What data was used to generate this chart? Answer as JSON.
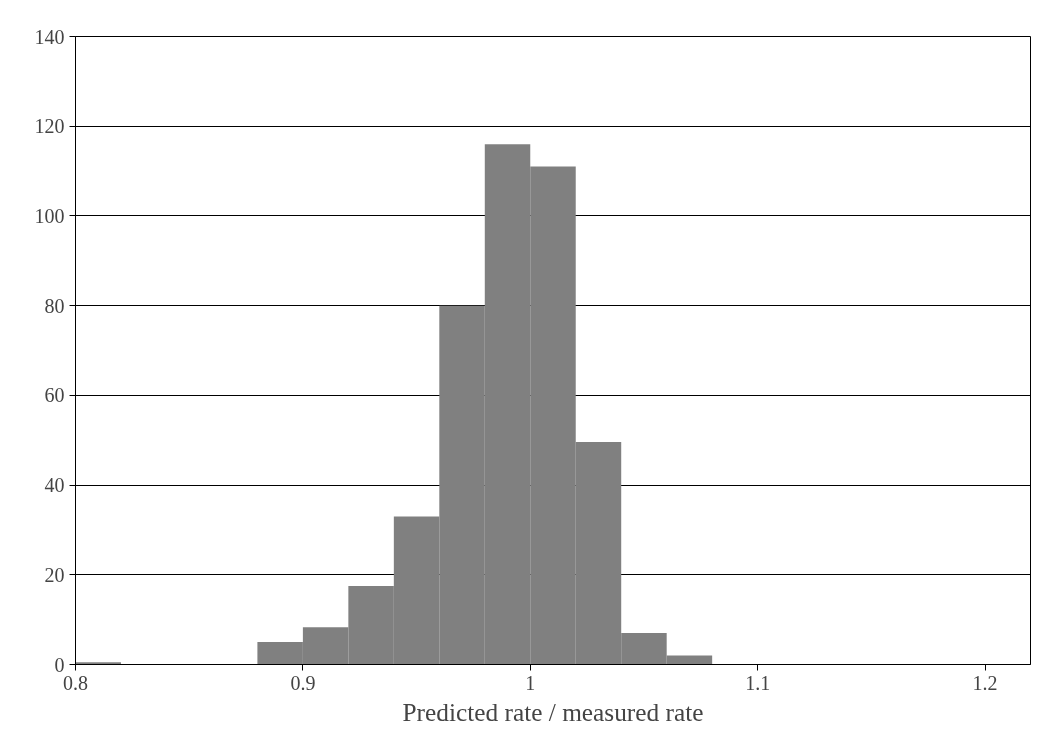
{
  "chart_data": {
    "type": "histogram",
    "xlabel": "Predicted rate / measured rate",
    "bins": [
      0.8,
      0.82,
      0.84,
      0.86,
      0.88,
      0.9,
      0.92,
      0.94,
      0.96,
      0.98,
      1.0,
      1.02,
      1.04,
      1.06,
      1.08
    ],
    "values": [
      0.5,
      0,
      0,
      0,
      5,
      8.3,
      17.5,
      33,
      80,
      116,
      111,
      49.6,
      7,
      2
    ],
    "color": "#808080",
    "xlim": [
      0.8,
      1.22
    ],
    "xticks": [
      {
        "value": 0.8,
        "label": "0.8"
      },
      {
        "value": 0.9,
        "label": "0.9"
      },
      {
        "value": 1.0,
        "label": "1"
      },
      {
        "value": 1.1,
        "label": "1.1"
      },
      {
        "value": 1.2,
        "label": "1.2"
      }
    ],
    "ylim": [
      0,
      140
    ],
    "yticks": [
      0,
      20,
      40,
      60,
      80,
      100,
      120,
      140
    ],
    "grid": "y"
  }
}
